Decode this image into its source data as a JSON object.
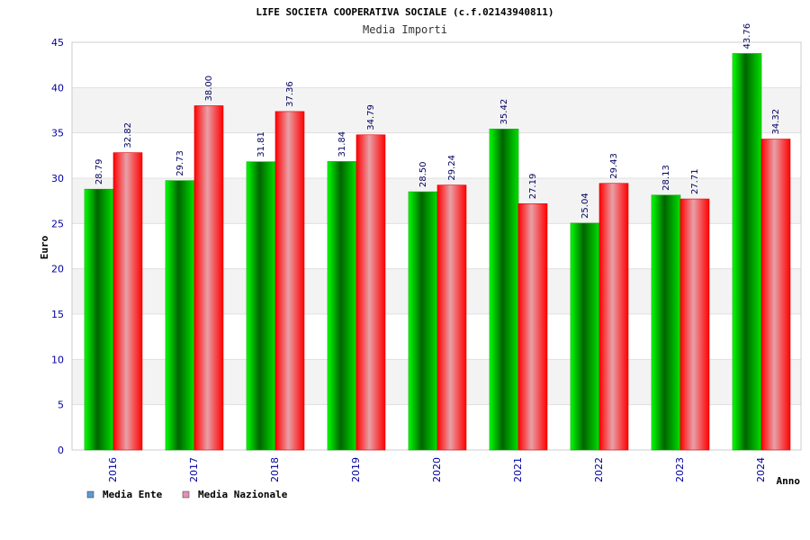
{
  "chart_data": {
    "type": "bar",
    "title": "LIFE SOCIETA COOPERATIVA SOCIALE (c.f.02143940811)",
    "subtitle": "Media Importi",
    "xlabel": "Anno",
    "ylabel": "Euro",
    "ylim": [
      0,
      45
    ],
    "yticks": [
      0,
      5,
      10,
      15,
      20,
      25,
      30,
      35,
      40,
      45
    ],
    "categories": [
      "2016",
      "2017",
      "2018",
      "2019",
      "2020",
      "2021",
      "2022",
      "2023",
      "2024"
    ],
    "series": [
      {
        "name": "Media Ente",
        "color": "#00b000",
        "legend_color": "#5b9bd5",
        "values": [
          28.79,
          29.73,
          31.81,
          31.84,
          28.5,
          35.42,
          25.04,
          28.13,
          43.76
        ],
        "labels": [
          "28.79",
          "29.73",
          "31.81",
          "31.84",
          "28.50",
          "35.42",
          "25.04",
          "28.13",
          "43.76"
        ]
      },
      {
        "name": "Media Nazionale",
        "color": "#ff0000",
        "legend_color": "#e58fb8",
        "values": [
          32.82,
          38.0,
          37.36,
          34.79,
          29.24,
          27.19,
          29.43,
          27.71,
          34.32
        ],
        "labels": [
          "32.82",
          "38.00",
          "37.36",
          "34.79",
          "29.24",
          "27.19",
          "29.43",
          "27.71",
          "34.32"
        ]
      }
    ],
    "grid": true,
    "legend_position": "bottom-left"
  }
}
